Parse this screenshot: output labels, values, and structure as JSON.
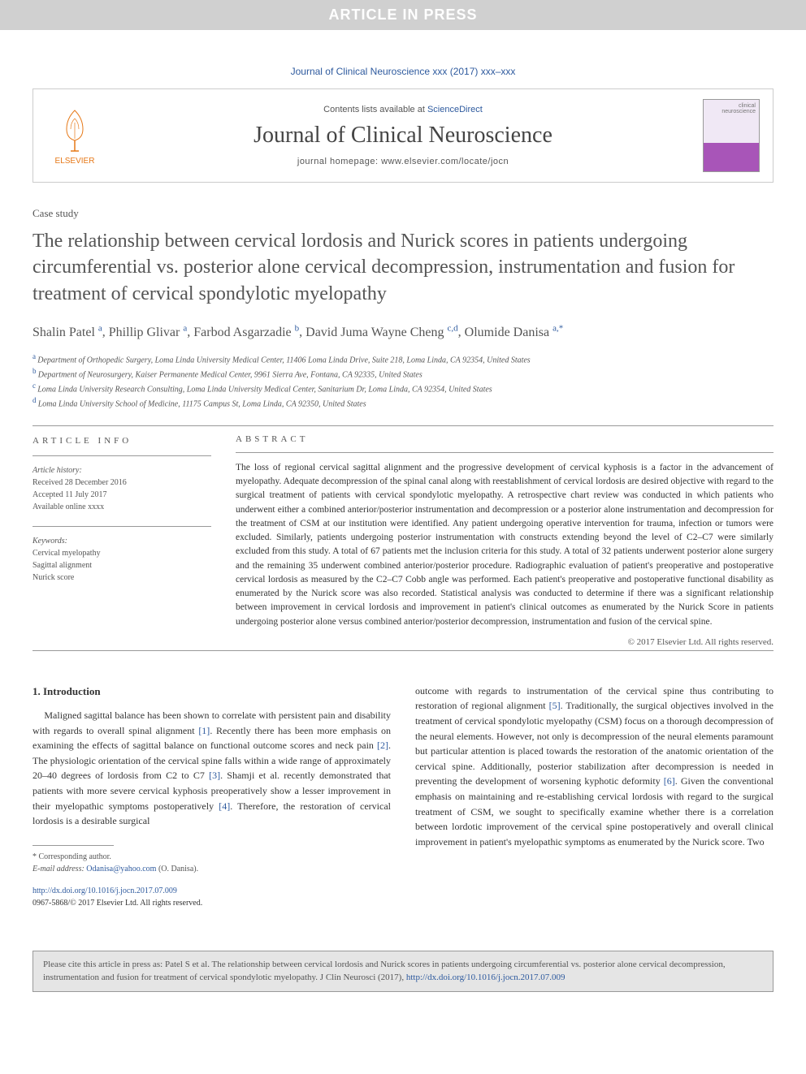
{
  "banner": {
    "text": "ARTICLE IN PRESS"
  },
  "journal_ref": "Journal of Clinical Neuroscience xxx (2017) xxx–xxx",
  "masthead": {
    "contents_prefix": "Contents lists available at ",
    "contents_link": "ScienceDirect",
    "journal_name": "Journal of Clinical Neuroscience",
    "homepage_prefix": "journal homepage: ",
    "homepage_url": "www.elsevier.com/locate/jocn",
    "elsevier_label": "ELSEVIER",
    "elsevier_color": "#e67817",
    "link_color": "#2e5a9e"
  },
  "article": {
    "type": "Case study",
    "title": "The relationship between cervical lordosis and Nurick scores in patients undergoing circumferential vs. posterior alone cervical decompression, instrumentation and fusion for treatment of cervical spondylotic myelopathy",
    "authors": [
      {
        "name": "Shalin Patel",
        "sup": "a"
      },
      {
        "name": "Phillip Glivar",
        "sup": "a"
      },
      {
        "name": "Farbod Asgarzadie",
        "sup": "b"
      },
      {
        "name": "David Juma Wayne Cheng",
        "sup": "c,d"
      },
      {
        "name": "Olumide Danisa",
        "sup": "a,",
        "corr": true
      }
    ],
    "affiliations": [
      {
        "sup": "a",
        "text": "Department of Orthopedic Surgery, Loma Linda University Medical Center, 11406 Loma Linda Drive, Suite 218, Loma Linda, CA 92354, United States"
      },
      {
        "sup": "b",
        "text": "Department of Neurosurgery, Kaiser Permanente Medical Center, 9961 Sierra Ave, Fontana, CA 92335, United States"
      },
      {
        "sup": "c",
        "text": "Loma Linda University Research Consulting, Loma Linda University Medical Center, Sanitarium Dr, Loma Linda, CA 92354, United States"
      },
      {
        "sup": "d",
        "text": "Loma Linda University School of Medicine, 11175 Campus St, Loma Linda, CA 92350, United States"
      }
    ]
  },
  "info": {
    "heading": "ARTICLE INFO",
    "history_head": "Article history:",
    "history": [
      "Received 28 December 2016",
      "Accepted 11 July 2017",
      "Available online xxxx"
    ],
    "keywords_head": "Keywords:",
    "keywords": [
      "Cervical myelopathy",
      "Sagittal alignment",
      "Nurick score"
    ]
  },
  "abstract": {
    "heading": "ABSTRACT",
    "text": "The loss of regional cervical sagittal alignment and the progressive development of cervical kyphosis is a factor in the advancement of myelopathy. Adequate decompression of the spinal canal along with reestablishment of cervical lordosis are desired objective with regard to the surgical treatment of patients with cervical spondylotic myelopathy. A retrospective chart review was conducted in which patients who underwent either a combined anterior/posterior instrumentation and decompression or a posterior alone instrumentation and decompression for the treatment of CSM at our institution were identified. Any patient undergoing operative intervention for trauma, infection or tumors were excluded. Similarly, patients undergoing posterior instrumentation with constructs extending beyond the level of C2–C7 were similarly excluded from this study. A total of 67 patients met the inclusion criteria for this study. A total of 32 patients underwent posterior alone surgery and the remaining 35 underwent combined anterior/posterior procedure. Radiographic evaluation of patient's preoperative and postoperative cervical lordosis as measured by the C2–C7 Cobb angle was performed. Each patient's preoperative and postoperative functional disability as enumerated by the Nurick score was also recorded. Statistical analysis was conducted to determine if there was a significant relationship between improvement in cervical lordosis and improvement in patient's clinical outcomes as enumerated by the Nurick Score in patients undergoing posterior alone versus combined anterior/posterior decompression, instrumentation and fusion of the cervical spine.",
    "copyright": "© 2017 Elsevier Ltd. All rights reserved."
  },
  "body": {
    "section_head": "1. Introduction",
    "col1": "Maligned sagittal balance has been shown to correlate with persistent pain and disability with regards to overall spinal alignment [1]. Recently there has been more emphasis on examining the effects of sagittal balance on functional outcome scores and neck pain [2]. The physiologic orientation of the cervical spine falls within a wide range of approximately 20–40 degrees of lordosis from C2 to C7 [3]. Shamji et al. recently demonstrated that patients with more severe cervical kyphosis preoperatively show a lesser improvement in their myelopathic symptoms postoperatively [4]. Therefore, the restoration of cervical lordosis is a desirable surgical",
    "col2": "outcome with regards to instrumentation of the cervical spine thus contributing to restoration of regional alignment [5]. Traditionally, the surgical objectives involved in the treatment of cervical spondylotic myelopathy (CSM) focus on a thorough decompression of the neural elements. However, not only is decompression of the neural elements paramount but particular attention is placed towards the restoration of the anatomic orientation of the cervical spine. Additionally, posterior stabilization after decompression is needed in preventing the development of worsening kyphotic deformity [6]. Given the conventional emphasis on maintaining and re-establishing cervical lordosis with regard to the surgical treatment of CSM, we sought to specifically examine whether there is a correlation between lordotic improvement of the cervical spine postoperatively and overall clinical improvement in patient's myelopathic symptoms as enumerated by the Nurick score. Two",
    "refs": [
      "[1]",
      "[2]",
      "[3]",
      "[4]",
      "[5]",
      "[6]"
    ]
  },
  "footnote": {
    "corr_label": "* Corresponding author.",
    "email_label": "E-mail address:",
    "email": "Odanisa@yahoo.com",
    "email_name": "(O. Danisa)."
  },
  "doi": {
    "url": "http://dx.doi.org/10.1016/j.jocn.2017.07.009",
    "issn_line": "0967-5868/© 2017 Elsevier Ltd. All rights reserved."
  },
  "cite_box": {
    "prefix": "Please cite this article in press as: Patel S et al. The relationship between cervical lordosis and Nurick scores in patients undergoing circumferential vs. posterior alone cervical decompression, instrumentation and fusion for treatment of cervical spondylotic myelopathy. J Clin Neurosci (2017), ",
    "link": "http://dx.doi.org/10.1016/j.jocn.2017.07.009"
  },
  "colors": {
    "banner_bg": "#d0d0d0",
    "banner_text": "#ffffff",
    "link": "#2e5a9e",
    "elsevier": "#e67817",
    "text": "#333333",
    "muted": "#555555",
    "border": "#999999",
    "citebox_bg": "#e5e5e5"
  },
  "typography": {
    "title_fontsize": 24,
    "journal_name_fontsize": 28,
    "body_fontsize": 12,
    "abstract_fontsize": 11.5,
    "footnote_fontsize": 10
  }
}
